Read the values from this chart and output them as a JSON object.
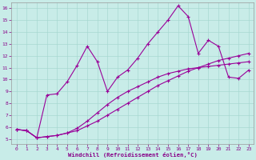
{
  "bg_color": "#c8ece8",
  "line_color": "#990099",
  "xlabel": "Windchill (Refroidissement éolien,°C)",
  "xlim_min": -0.5,
  "xlim_max": 23.5,
  "ylim_min": 4.6,
  "ylim_max": 16.5,
  "xticks": [
    0,
    1,
    2,
    3,
    4,
    5,
    6,
    7,
    8,
    9,
    10,
    11,
    12,
    13,
    14,
    15,
    16,
    17,
    18,
    19,
    20,
    21,
    22,
    23
  ],
  "yticks": [
    5,
    6,
    7,
    8,
    9,
    10,
    11,
    12,
    13,
    14,
    15,
    16
  ],
  "line1": {
    "x": [
      0,
      1,
      2,
      3,
      4,
      5,
      6,
      7,
      8,
      9,
      10,
      11,
      12,
      13,
      14,
      15,
      16,
      17,
      18,
      19,
      20,
      21,
      22,
      23
    ],
    "y": [
      5.8,
      5.7,
      5.1,
      5.2,
      5.3,
      5.5,
      5.7,
      6.1,
      6.5,
      7.0,
      7.5,
      8.0,
      8.5,
      9.0,
      9.5,
      9.9,
      10.3,
      10.7,
      11.0,
      11.3,
      11.6,
      11.8,
      12.0,
      12.2
    ],
    "marker": "+"
  },
  "line2": {
    "x": [
      0,
      1,
      2,
      3,
      4,
      5,
      6,
      7,
      8,
      9,
      10,
      11,
      12,
      13,
      14,
      15,
      16,
      17,
      18,
      19,
      20,
      21,
      22,
      23
    ],
    "y": [
      5.8,
      5.7,
      5.1,
      5.2,
      5.3,
      5.5,
      5.9,
      6.5,
      7.2,
      7.9,
      8.5,
      9.0,
      9.4,
      9.8,
      10.2,
      10.5,
      10.7,
      10.9,
      11.0,
      11.1,
      11.2,
      11.3,
      11.4,
      11.5
    ],
    "marker": "+"
  },
  "line3": {
    "x": [
      0,
      1,
      2,
      3,
      4,
      5,
      6,
      7,
      8,
      9,
      10,
      11,
      12,
      13,
      14,
      15,
      16,
      17,
      18,
      19,
      20,
      21,
      22,
      23
    ],
    "y": [
      5.8,
      5.7,
      5.1,
      8.7,
      8.8,
      9.8,
      11.2,
      12.8,
      11.5,
      9.0,
      10.2,
      10.8,
      11.8,
      13.0,
      14.0,
      15.0,
      16.2,
      15.3,
      12.2,
      13.3,
      12.8,
      10.2,
      10.1,
      10.8
    ],
    "marker": "+"
  },
  "linewidth": 0.8,
  "markersize": 3.0,
  "tick_fontsize": 4.5,
  "xlabel_fontsize": 5.2,
  "grid_color": "#a8d8d2",
  "tick_color": "#880088"
}
